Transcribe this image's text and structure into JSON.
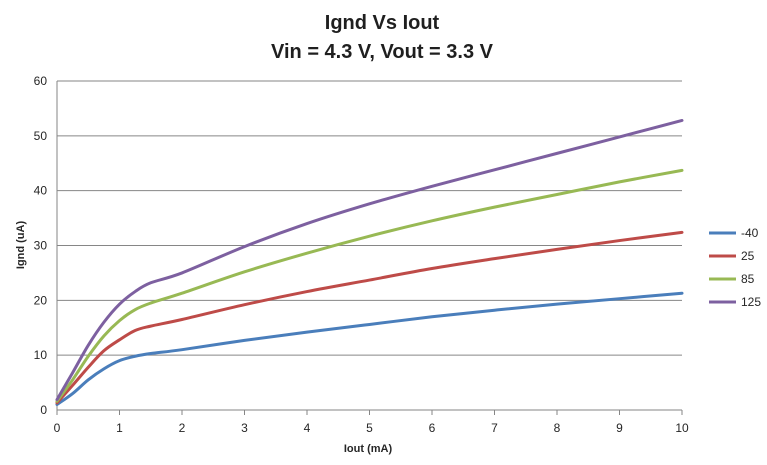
{
  "chart_data": {
    "type": "line",
    "title": "Ignd Vs Iout",
    "subtitle": "Vin = 4.3 V, Vout = 3.3 V",
    "xlabel": "Iout (mA)",
    "ylabel": "Ignd (uA)",
    "xlim": [
      0,
      10
    ],
    "ylim": [
      0,
      60
    ],
    "x_ticks": [
      "0",
      "1",
      "2",
      "3",
      "4",
      "5",
      "6",
      "7",
      "8",
      "9",
      "10"
    ],
    "y_ticks": [
      "0",
      "10",
      "20",
      "30",
      "40",
      "50",
      "60"
    ],
    "grid": true,
    "legend_position": "right",
    "x": [
      0,
      0.25,
      0.5,
      0.75,
      1,
      1.25,
      1.5,
      2,
      3,
      4,
      5,
      6,
      7,
      8,
      9,
      10
    ],
    "series": [
      {
        "name": "-40",
        "color": "#4a7ebb",
        "values": [
          1.0,
          3.0,
          5.5,
          7.5,
          9.0,
          9.8,
          10.3,
          11.0,
          12.7,
          14.2,
          15.6,
          17.0,
          18.2,
          19.3,
          20.3,
          21.3
        ]
      },
      {
        "name": "25",
        "color": "#be4b48",
        "values": [
          1.3,
          4.5,
          7.8,
          10.8,
          12.8,
          14.5,
          15.3,
          16.5,
          19.2,
          21.6,
          23.7,
          25.8,
          27.6,
          29.3,
          30.9,
          32.4
        ]
      },
      {
        "name": "85",
        "color": "#98b954",
        "values": [
          1.6,
          5.5,
          9.8,
          13.5,
          16.3,
          18.3,
          19.5,
          21.3,
          25.2,
          28.6,
          31.7,
          34.5,
          37.0,
          39.3,
          41.6,
          43.7
        ]
      },
      {
        "name": "125",
        "color": "#7d60a0",
        "values": [
          1.9,
          6.8,
          11.8,
          16.0,
          19.3,
          21.6,
          23.2,
          25.0,
          29.8,
          34.0,
          37.6,
          40.8,
          43.8,
          46.8,
          49.8,
          52.8
        ]
      }
    ]
  }
}
